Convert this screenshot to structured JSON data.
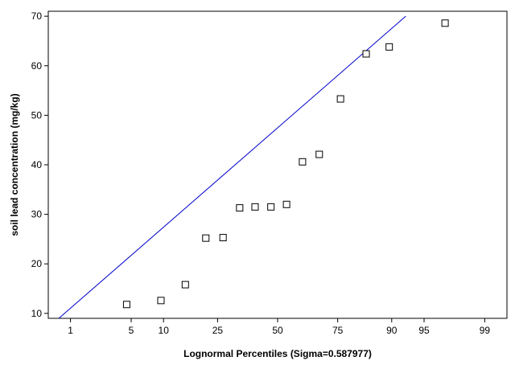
{
  "chart_data": {
    "type": "scatter",
    "title": "",
    "xlabel": "Lognormal Percentiles (Sigma=0.587977)",
    "ylabel": "soil lead concentration (mg/kg)",
    "x_scale": "probit",
    "xlim": [
      0.5,
      99.5
    ],
    "ylim": [
      9,
      71
    ],
    "x_ticks": [
      1,
      5,
      10,
      25,
      50,
      75,
      90,
      95,
      99
    ],
    "y_ticks": [
      10,
      20,
      30,
      40,
      50,
      60,
      70
    ],
    "grid": false,
    "series": [
      {
        "marker": "square",
        "color": "#000000",
        "points": [
          {
            "x": 4.5,
            "y": 11.8
          },
          {
            "x": 9.5,
            "y": 12.6
          },
          {
            "x": 15,
            "y": 15.8
          },
          {
            "x": 21,
            "y": 25.2
          },
          {
            "x": 27,
            "y": 25.3
          },
          {
            "x": 33.5,
            "y": 31.3
          },
          {
            "x": 40,
            "y": 31.5
          },
          {
            "x": 47,
            "y": 31.5
          },
          {
            "x": 54,
            "y": 32
          },
          {
            "x": 61,
            "y": 40.6
          },
          {
            "x": 68,
            "y": 42.1
          },
          {
            "x": 76,
            "y": 53.3
          },
          {
            "x": 84,
            "y": 62.4
          },
          {
            "x": 89.5,
            "y": 63.8
          },
          {
            "x": 97,
            "y": 68.6
          }
        ]
      }
    ],
    "fit_line": {
      "color": "#0000cc",
      "points": [
        {
          "x": 0.7,
          "y": 9
        },
        {
          "x": 92.5,
          "y": 70
        }
      ]
    }
  }
}
